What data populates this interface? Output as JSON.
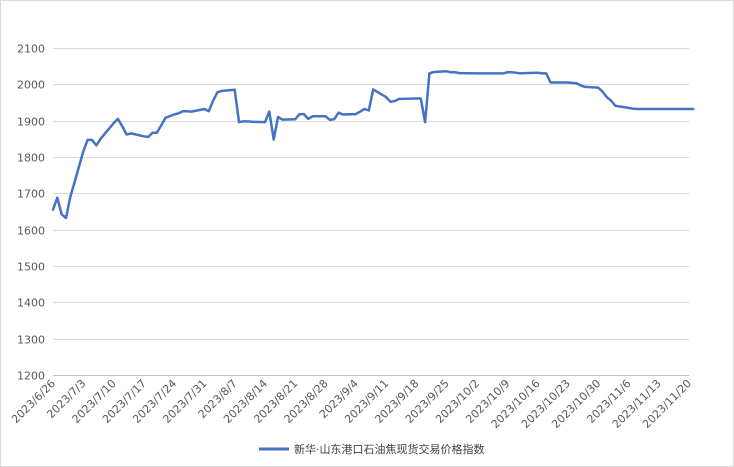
{
  "chart_data": {
    "type": "line",
    "title": "",
    "xlabel": "",
    "ylabel": "",
    "ylim": [
      1200,
      2100
    ],
    "y_ticks": [
      1200,
      1300,
      1400,
      1500,
      1600,
      1700,
      1800,
      1900,
      2000,
      2100
    ],
    "x_range": [
      "2023-06-26",
      "2023-11-20"
    ],
    "x_tick_labels": [
      "2023/6/26",
      "2023/7/3",
      "2023/7/10",
      "2023/7/17",
      "2023/7/24",
      "2023/7/31",
      "2023/8/7",
      "2023/8/14",
      "2023/8/21",
      "2023/8/28",
      "2023/9/4",
      "2023/9/11",
      "2023/9/18",
      "2023/9/25",
      "2023/10/2",
      "2023/10/9",
      "2023/10/16",
      "2023/10/23",
      "2023/10/30",
      "2023/11/6",
      "2023/11/13",
      "2023/11/20"
    ],
    "x_tick_dates": [
      "2023-06-26",
      "2023-07-03",
      "2023-07-10",
      "2023-07-17",
      "2023-07-24",
      "2023-07-31",
      "2023-08-07",
      "2023-08-14",
      "2023-08-21",
      "2023-08-28",
      "2023-09-04",
      "2023-09-11",
      "2023-09-18",
      "2023-09-25",
      "2023-10-02",
      "2023-10-09",
      "2023-10-16",
      "2023-10-23",
      "2023-10-30",
      "2023-11-06",
      "2023-11-13",
      "2023-11-20"
    ],
    "grid": true,
    "legend_position": "bottom",
    "series": [
      {
        "name": "新华·山东港口石油焦现货交易价格指数",
        "color": "#4472c4",
        "points": [
          [
            "2023-06-26",
            1655
          ],
          [
            "2023-06-27",
            1688
          ],
          [
            "2023-06-28",
            1642
          ],
          [
            "2023-06-29",
            1632
          ],
          [
            "2023-06-30",
            1690
          ],
          [
            "2023-07-03",
            1815
          ],
          [
            "2023-07-04",
            1847
          ],
          [
            "2023-07-05",
            1847
          ],
          [
            "2023-07-06",
            1832
          ],
          [
            "2023-07-07",
            1850
          ],
          [
            "2023-07-10",
            1893
          ],
          [
            "2023-07-11",
            1905
          ],
          [
            "2023-07-12",
            1885
          ],
          [
            "2023-07-13",
            1862
          ],
          [
            "2023-07-14",
            1865
          ],
          [
            "2023-07-17",
            1857
          ],
          [
            "2023-07-18",
            1855
          ],
          [
            "2023-07-19",
            1867
          ],
          [
            "2023-07-20",
            1867
          ],
          [
            "2023-07-21",
            1887
          ],
          [
            "2023-07-22",
            1908
          ],
          [
            "2023-07-24",
            1917
          ],
          [
            "2023-07-25",
            1920
          ],
          [
            "2023-07-26",
            1926
          ],
          [
            "2023-07-27",
            1926
          ],
          [
            "2023-07-28",
            1925
          ],
          [
            "2023-07-31",
            1932
          ],
          [
            "2023-08-01",
            1926
          ],
          [
            "2023-08-02",
            1955
          ],
          [
            "2023-08-03",
            1978
          ],
          [
            "2023-08-04",
            1982
          ],
          [
            "2023-08-07",
            1985
          ],
          [
            "2023-08-08",
            1896
          ],
          [
            "2023-08-09",
            1898
          ],
          [
            "2023-08-10",
            1898
          ],
          [
            "2023-08-11",
            1897
          ],
          [
            "2023-08-14",
            1896
          ],
          [
            "2023-08-15",
            1925
          ],
          [
            "2023-08-16",
            1848
          ],
          [
            "2023-08-17",
            1910
          ],
          [
            "2023-08-18",
            1903
          ],
          [
            "2023-08-21",
            1904
          ],
          [
            "2023-08-22",
            1918
          ],
          [
            "2023-08-23",
            1918
          ],
          [
            "2023-08-24",
            1905
          ],
          [
            "2023-08-25",
            1912
          ],
          [
            "2023-08-28",
            1912
          ],
          [
            "2023-08-29",
            1902
          ],
          [
            "2023-08-30",
            1904
          ],
          [
            "2023-08-31",
            1922
          ],
          [
            "2023-09-01",
            1917
          ],
          [
            "2023-09-04",
            1918
          ],
          [
            "2023-09-05",
            1925
          ],
          [
            "2023-09-06",
            1932
          ],
          [
            "2023-09-07",
            1928
          ],
          [
            "2023-09-08",
            1986
          ],
          [
            "2023-09-11",
            1965
          ],
          [
            "2023-09-12",
            1952
          ],
          [
            "2023-09-13",
            1954
          ],
          [
            "2023-09-14",
            1960
          ],
          [
            "2023-09-15",
            1960
          ],
          [
            "2023-09-18",
            1961
          ],
          [
            "2023-09-19",
            1961
          ],
          [
            "2023-09-20",
            1896
          ],
          [
            "2023-09-21",
            2030
          ],
          [
            "2023-09-22",
            2034
          ],
          [
            "2023-09-25",
            2036
          ],
          [
            "2023-09-26",
            2033
          ],
          [
            "2023-09-27",
            2033
          ],
          [
            "2023-09-28",
            2031
          ],
          [
            "2023-10-02",
            2030
          ],
          [
            "2023-10-06",
            2030
          ],
          [
            "2023-10-08",
            2030
          ],
          [
            "2023-10-09",
            2033
          ],
          [
            "2023-10-10",
            2033
          ],
          [
            "2023-10-11",
            2032
          ],
          [
            "2023-10-12",
            2030
          ],
          [
            "2023-10-13",
            2031
          ],
          [
            "2023-10-16",
            2032
          ],
          [
            "2023-10-17",
            2030
          ],
          [
            "2023-10-18",
            2030
          ],
          [
            "2023-10-19",
            2005
          ],
          [
            "2023-10-20",
            2005
          ],
          [
            "2023-10-23",
            2005
          ],
          [
            "2023-10-24",
            2004
          ],
          [
            "2023-10-25",
            2003
          ],
          [
            "2023-10-26",
            1997
          ],
          [
            "2023-10-27",
            1993
          ],
          [
            "2023-10-30",
            1991
          ],
          [
            "2023-10-31",
            1980
          ],
          [
            "2023-11-01",
            1965
          ],
          [
            "2023-11-02",
            1955
          ],
          [
            "2023-11-03",
            1941
          ],
          [
            "2023-11-06",
            1935
          ],
          [
            "2023-11-07",
            1933
          ],
          [
            "2023-11-08",
            1932
          ],
          [
            "2023-11-10",
            1932
          ],
          [
            "2023-11-13",
            1932
          ],
          [
            "2023-11-17",
            1932
          ],
          [
            "2023-11-20",
            1932
          ],
          [
            "2023-11-21",
            1932
          ]
        ]
      }
    ]
  }
}
